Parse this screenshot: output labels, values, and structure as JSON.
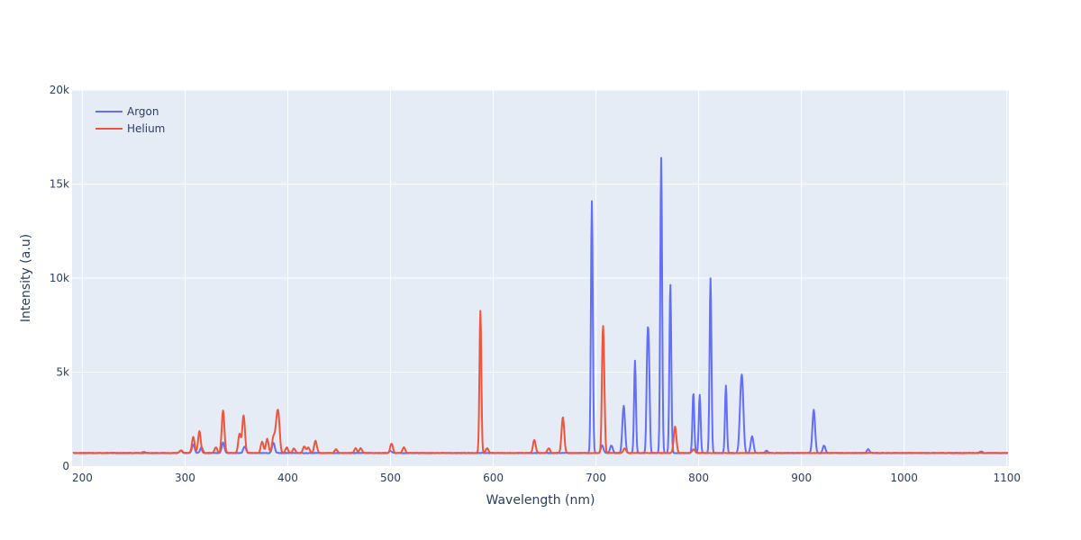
{
  "chart_data": {
    "type": "line",
    "title": "",
    "xlabel": "Wavelength (nm)",
    "ylabel": "Intensity (a.u)",
    "xlim": [
      190,
      1102
    ],
    "ylim": [
      0,
      20000
    ],
    "x_ticks": [
      200,
      300,
      400,
      500,
      600,
      700,
      800,
      900,
      1000,
      1100
    ],
    "y_ticks": [
      0,
      5000,
      10000,
      15000,
      20000
    ],
    "y_tick_labels": [
      "0",
      "5k",
      "10k",
      "15k",
      "20k"
    ],
    "grid": true,
    "legend_position": "top-left",
    "baseline": 700,
    "series": [
      {
        "name": "Argon",
        "color": "#636efa",
        "peaks": [
          [
            260,
            760
          ],
          [
            296,
            820
          ],
          [
            308,
            1150
          ],
          [
            316,
            1000
          ],
          [
            337,
            1250
          ],
          [
            358,
            1050
          ],
          [
            386,
            1250
          ],
          [
            500,
            800
          ],
          [
            696,
            14100
          ],
          [
            706,
            1100
          ],
          [
            715,
            1100
          ],
          [
            727,
            3200
          ],
          [
            738,
            5600
          ],
          [
            750,
            5600
          ],
          [
            751.5,
            5300
          ],
          [
            763.5,
            16400
          ],
          [
            772.4,
            9700
          ],
          [
            794.8,
            3900
          ],
          [
            801,
            3800
          ],
          [
            811.5,
            10000
          ],
          [
            826.5,
            4300
          ],
          [
            840.8,
            2800
          ],
          [
            842.5,
            3700
          ],
          [
            852,
            1600
          ],
          [
            866,
            820
          ],
          [
            912,
            3000
          ],
          [
            922,
            1100
          ],
          [
            965,
            900
          ],
          [
            1075,
            780
          ]
        ]
      },
      {
        "name": "Helium",
        "color": "#ef553b",
        "peaks": [
          [
            296,
            850
          ],
          [
            308,
            1550
          ],
          [
            314,
            1850
          ],
          [
            330,
            1000
          ],
          [
            337,
            2950
          ],
          [
            353,
            1700
          ],
          [
            357,
            2700
          ],
          [
            375,
            1300
          ],
          [
            380,
            1450
          ],
          [
            386,
            1550
          ],
          [
            389,
            2000
          ],
          [
            391,
            2450
          ],
          [
            399,
            1000
          ],
          [
            406,
            950
          ],
          [
            416,
            1050
          ],
          [
            420,
            1000
          ],
          [
            427,
            1350
          ],
          [
            447,
            900
          ],
          [
            466,
            950
          ],
          [
            471,
            950
          ],
          [
            501,
            1200
          ],
          [
            513,
            1000
          ],
          [
            587.5,
            8250
          ],
          [
            594,
            950
          ],
          [
            640,
            1400
          ],
          [
            654,
            950
          ],
          [
            667.8,
            2600
          ],
          [
            706.5,
            5900
          ],
          [
            707.8,
            4100
          ],
          [
            728,
            950
          ],
          [
            777,
            2100
          ],
          [
            795,
            900
          ]
        ]
      }
    ]
  }
}
